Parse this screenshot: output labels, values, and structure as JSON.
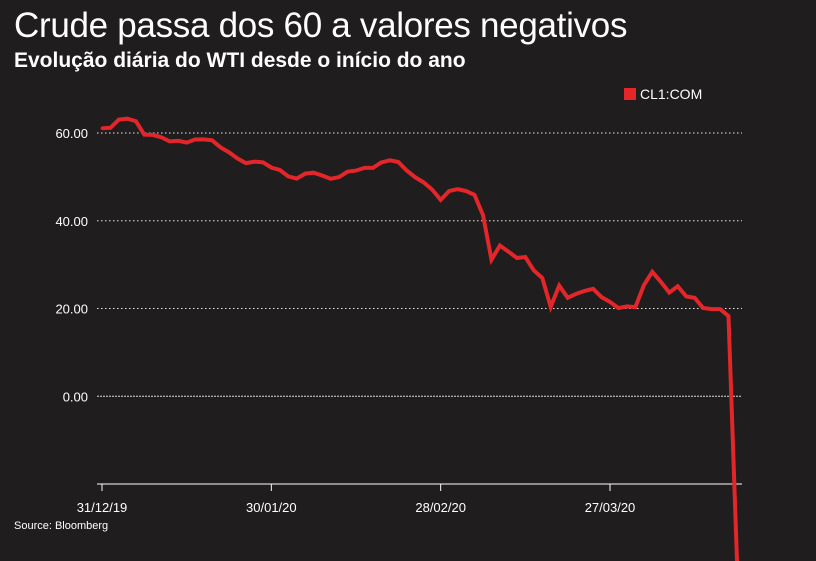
{
  "title": "Crude passa dos 60 a valores negativos",
  "subtitle": "Evolução diária do WTI desde o início do ano",
  "source": "Source: Bloomberg",
  "colors": {
    "background": "#1f1d1e",
    "series": "#e3262a",
    "grid": "#ffffff"
  },
  "chart_data": {
    "type": "line",
    "title": "Crude passa dos 60 a valores negativos",
    "subtitle": "Evolução diária do WTI desde o início do ano",
    "xlabel": "",
    "ylabel": "",
    "legend": {
      "position": "top-right",
      "entries": [
        "CL1:COM"
      ]
    },
    "grid": "horizontal dotted",
    "ylim": [
      -20,
      60
    ],
    "y_ticks": [
      0,
      20,
      40,
      60
    ],
    "y_tick_labels": [
      "0.00",
      "20.00",
      "40.00",
      "60.00"
    ],
    "x_ticks": [
      "31/12/19",
      "30/01/20",
      "28/02/20",
      "27/03/20"
    ],
    "series": [
      {
        "name": "CL1:COM",
        "x": [
          "31/12/19",
          "02/01/20",
          "03/01/20",
          "06/01/20",
          "07/01/20",
          "08/01/20",
          "09/01/20",
          "10/01/20",
          "13/01/20",
          "14/01/20",
          "15/01/20",
          "16/01/20",
          "17/01/20",
          "21/01/20",
          "22/01/20",
          "23/01/20",
          "24/01/20",
          "27/01/20",
          "28/01/20",
          "29/01/20",
          "30/01/20",
          "31/01/20",
          "03/02/20",
          "04/02/20",
          "05/02/20",
          "06/02/20",
          "07/02/20",
          "10/02/20",
          "11/02/20",
          "12/02/20",
          "13/02/20",
          "14/02/20",
          "18/02/20",
          "19/02/20",
          "20/02/20",
          "21/02/20",
          "24/02/20",
          "25/02/20",
          "26/02/20",
          "27/02/20",
          "28/02/20",
          "02/03/20",
          "03/03/20",
          "04/03/20",
          "05/03/20",
          "06/03/20",
          "09/03/20",
          "10/03/20",
          "11/03/20",
          "12/03/20",
          "13/03/20",
          "16/03/20",
          "17/03/20",
          "18/03/20",
          "19/03/20",
          "20/03/20",
          "23/03/20",
          "24/03/20",
          "25/03/20",
          "26/03/20",
          "27/03/20",
          "30/03/20",
          "31/03/20",
          "01/04/20",
          "02/04/20",
          "03/04/20",
          "06/04/20",
          "07/04/20",
          "08/04/20",
          "09/04/20",
          "13/04/20",
          "14/04/20",
          "15/04/20",
          "16/04/20",
          "17/04/20",
          "20/04/20"
        ],
        "values": [
          61.06,
          61.18,
          63.05,
          63.27,
          62.7,
          59.61,
          59.56,
          59.04,
          58.08,
          58.23,
          57.81,
          58.52,
          58.54,
          58.34,
          56.74,
          55.59,
          54.19,
          53.14,
          53.48,
          53.33,
          52.14,
          51.56,
          50.11,
          49.61,
          50.75,
          50.95,
          50.32,
          49.57,
          49.94,
          51.17,
          51.42,
          52.05,
          52.05,
          53.29,
          53.78,
          53.38,
          51.43,
          49.9,
          48.73,
          47.09,
          44.76,
          46.75,
          47.18,
          46.78,
          45.9,
          41.28,
          31.13,
          34.36,
          32.98,
          31.5,
          31.73,
          28.7,
          26.95,
          20.37,
          25.22,
          22.43,
          23.36,
          24.01,
          24.49,
          22.6,
          21.51,
          20.09,
          20.48,
          20.31,
          25.32,
          28.34,
          26.08,
          23.63,
          25.09,
          22.76,
          22.41,
          20.11,
          19.87,
          19.87,
          18.27,
          -37.63
        ]
      }
    ]
  }
}
